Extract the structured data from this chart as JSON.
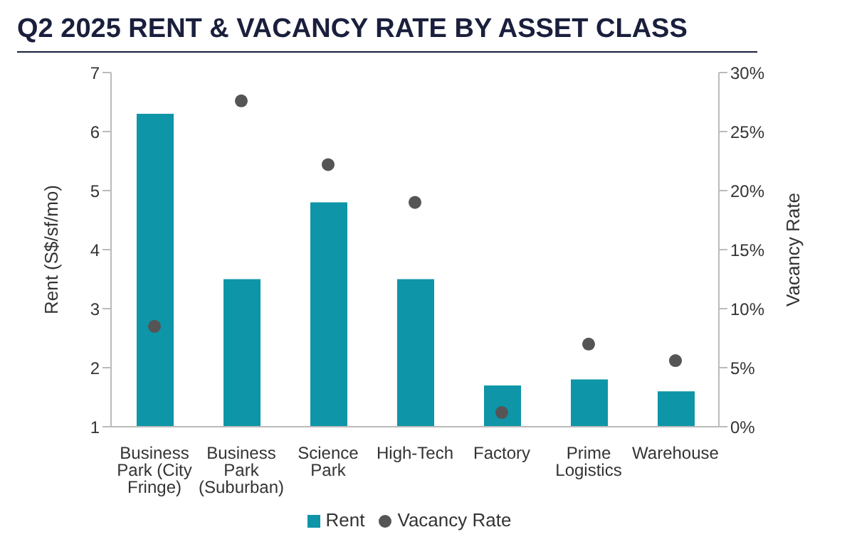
{
  "chart_data": {
    "type": "bar",
    "title": "Q2 2025 RENT & VACANCY RATE BY ASSET CLASS",
    "categories": [
      "Business Park (City Fringe)",
      "Business Park (Suburban)",
      "Science Park",
      "High-Tech",
      "Factory",
      "Prime Logistics",
      "Warehouse"
    ],
    "series": [
      {
        "name": "Rent",
        "color": "#0e95a8",
        "values": [
          6.3,
          3.5,
          4.8,
          3.5,
          1.7,
          1.8,
          1.6
        ]
      },
      {
        "name": "Vacancy Rate",
        "type": "scatter",
        "axis": "y2",
        "color": "#555555",
        "values": [
          8.5,
          27.6,
          22.2,
          19.0,
          1.2,
          7.0,
          5.6
        ]
      }
    ],
    "ylabel": "Rent (S$/sf/mo)",
    "y2label": "Vacancy Rate",
    "ylim": [
      1,
      7
    ],
    "yticks": [
      1,
      2,
      3,
      4,
      5,
      6,
      7
    ],
    "y2lim": [
      0,
      30
    ],
    "y2ticks": [
      {
        "value": 0,
        "label": "0%"
      },
      {
        "value": 5,
        "label": "5%"
      },
      {
        "value": 10,
        "label": "10%"
      },
      {
        "value": 15,
        "label": "15%"
      },
      {
        "value": 20,
        "label": "20%"
      },
      {
        "value": 25,
        "label": "25%"
      },
      {
        "value": 30,
        "label": "30%"
      }
    ],
    "legend": "bottom",
    "marker": "circle",
    "grid": false
  }
}
